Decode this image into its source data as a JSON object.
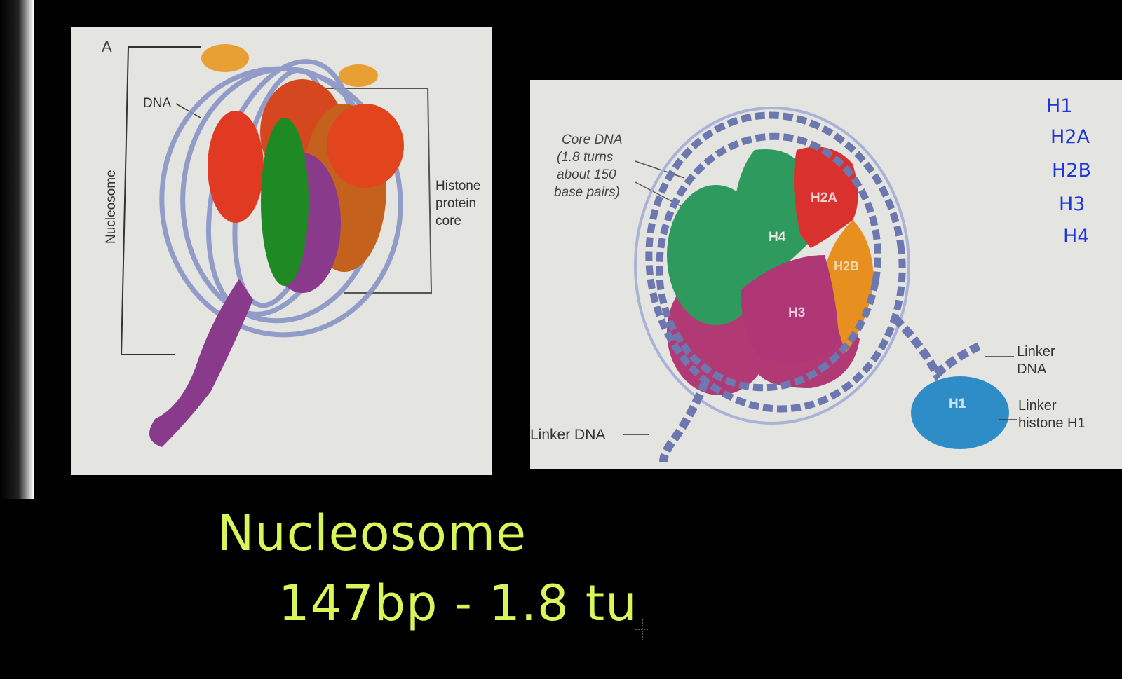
{
  "panel_a": {
    "letter": "A",
    "dna_label": "DNA",
    "nucleosome_label": "Nucleosome",
    "core_label_lines": [
      "Histone",
      "protein",
      "core"
    ]
  },
  "panel_b": {
    "core_dna_lines": [
      "Core DNA",
      "(1.8 turns",
      "about 150",
      "base pairs)"
    ],
    "histones": {
      "h4": "H4",
      "h2a": "H2A",
      "h2b": "H2B",
      "h3": "H3",
      "h1": "H1"
    },
    "linker_dna_left": "Linker DNA",
    "linker_dna_right_lines": [
      "Linker",
      "DNA"
    ],
    "linker_histone_lines": [
      "Linker",
      "histone H1"
    ]
  },
  "handwritten": {
    "title": "Nucleosome",
    "note": "147bp - 1.8 tu",
    "histone_list": [
      "H1",
      "H2A",
      "H2B",
      "H3",
      "H4"
    ]
  },
  "colors": {
    "handwriting": "#d8f55a",
    "blue_ink": "#1f36d8",
    "dna": "#8a95c6",
    "h4": "#2f9a5e",
    "h2a": "#d9322e",
    "h2b": "#e8901f",
    "h3": "#b23a74",
    "h1": "#2e8cc6"
  }
}
